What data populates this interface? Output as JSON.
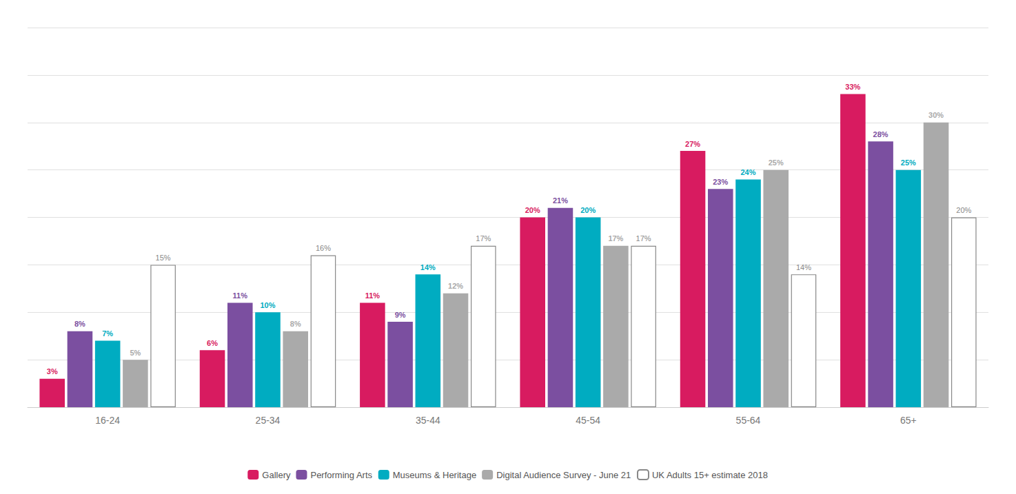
{
  "chart_data": {
    "type": "bar",
    "categories": [
      "16-24",
      "25-34",
      "35-44",
      "45-54",
      "55-64",
      "65+"
    ],
    "series": [
      {
        "name": "Gallery",
        "color": "#D81B60",
        "values": [
          3,
          6,
          11,
          20,
          27,
          33
        ],
        "value_labels": [
          "3%",
          "6%",
          "11%",
          "20%",
          "27%",
          "33%"
        ]
      },
      {
        "name": "Performing Arts",
        "color": "#7B4FA0",
        "values": [
          8,
          11,
          9,
          21,
          23,
          28
        ],
        "value_labels": [
          "8%",
          "11%",
          "9%",
          "21%",
          "23%",
          "28%"
        ]
      },
      {
        "name": "Museums & Heritage",
        "color": "#00ACC1",
        "values": [
          7,
          10,
          14,
          20,
          24,
          25
        ],
        "value_labels": [
          "7%",
          "10%",
          "14%",
          "20%",
          "24%",
          "25%"
        ]
      },
      {
        "name": "Digital Audience Survey - June 21",
        "color": "#aaaaaa",
        "values": [
          5,
          8,
          12,
          17,
          25,
          30
        ],
        "value_labels": [
          "5%",
          "8%",
          "12%",
          "17%",
          "25%",
          "30%"
        ]
      },
      {
        "name": "UK Adults 15+ estimate 2018",
        "color": "#ffffff",
        "values": [
          15,
          16,
          17,
          17,
          14,
          20
        ],
        "value_labels": [
          "15%",
          "16%",
          "17%",
          "17%",
          "14%",
          "20%"
        ]
      }
    ],
    "ylim": [
      0,
      40
    ],
    "yticks": [
      0,
      5,
      10,
      15,
      20,
      25,
      30,
      35,
      40
    ],
    "grid": true,
    "legend": "bottom",
    "data_labels": true,
    "tick_labels": "x"
  }
}
